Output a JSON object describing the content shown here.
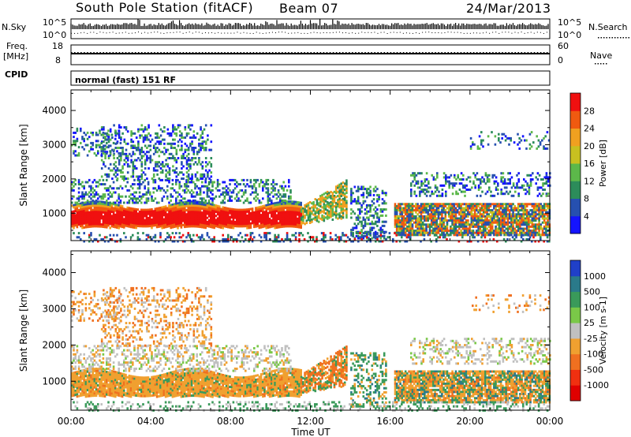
{
  "header": {
    "station": "South Pole Station (fitACF)",
    "beam": "Beam 07",
    "date": "24/Mar/2013"
  },
  "strips": {
    "nsky_label": "N.Sky",
    "nsearch_label": "N.Search",
    "noise_ticks": [
      "10^5",
      "10^0"
    ],
    "freq_label": "Freq.",
    "freq_unit": "[MHz]",
    "freq_ticks": [
      "18",
      "8"
    ],
    "nave_label": "Nave",
    "nave_ticks": [
      "60",
      "0"
    ],
    "cpid_label": "CPID",
    "cpid_value": "normal (fast) 151 RF"
  },
  "chart_data": [
    {
      "type": "heatmap",
      "panel": "power",
      "ylabel": "Slant Range [km]",
      "y_ticks": [
        1000,
        2000,
        3000,
        4000
      ],
      "ylim": [
        200,
        4600
      ],
      "xlim": [
        0,
        24
      ],
      "x_ticks": [
        "00:00",
        "04:00",
        "08:00",
        "12:00",
        "16:00",
        "20:00",
        "00:00"
      ],
      "colorbar": {
        "label": "Power [dB]",
        "ticks": [
          "4",
          "8",
          "12",
          "16",
          "20",
          "24",
          "28"
        ],
        "colors": [
          "#1414ff",
          "#2650b0",
          "#2c8c5a",
          "#5cb84a",
          "#c8c020",
          "#f0a020",
          "#f05a10",
          "#f01010"
        ]
      },
      "bands": [
        {
          "t0": 0.0,
          "t1": 11.5,
          "r0": 600,
          "r1": 1300,
          "level": "high"
        },
        {
          "t0": 11.5,
          "t1": 13.8,
          "r0": 800,
          "r1": 2000,
          "level": "medium"
        },
        {
          "t0": 14.0,
          "t1": 15.8,
          "r0": 300,
          "r1": 1800,
          "level": "low"
        },
        {
          "t0": 16.2,
          "t1": 24.0,
          "r0": 400,
          "r1": 1300,
          "level": "medium-high"
        },
        {
          "t0": 2.0,
          "t1": 7.0,
          "r0": 2000,
          "r1": 3600,
          "level": "low"
        }
      ]
    },
    {
      "type": "heatmap",
      "panel": "velocity",
      "ylabel": "Slant Range [km]",
      "xlabel": "Time UT",
      "y_ticks": [
        1000,
        2000,
        3000,
        4000
      ],
      "ylim": [
        200,
        4600
      ],
      "xlim": [
        0,
        24
      ],
      "x_ticks": [
        "00:00",
        "04:00",
        "08:00",
        "12:00",
        "16:00",
        "20:00",
        "00:00"
      ],
      "colorbar": {
        "label": "Velocity [m s-1]",
        "ticks": [
          "1000",
          "500",
          "100",
          "25",
          "-25",
          "-100",
          "-500",
          "-1000"
        ],
        "colors": [
          "#2040c8",
          "#2a7a8a",
          "#3a9a5a",
          "#7ac848",
          "#c0c0c0",
          "#f0a030",
          "#f07020",
          "#f03010",
          "#e00000"
        ]
      }
    }
  ]
}
